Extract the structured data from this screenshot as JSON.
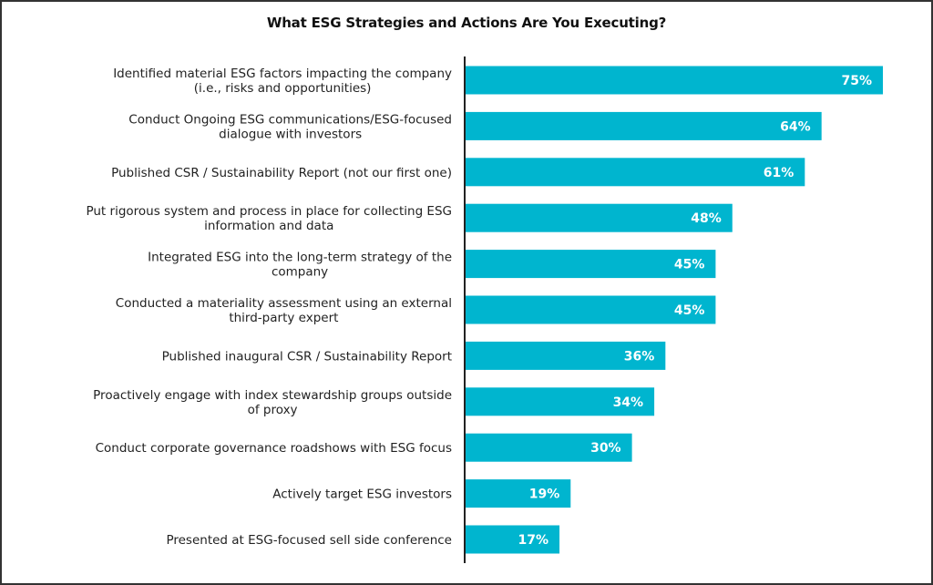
{
  "chart_data": {
    "type": "bar",
    "orientation": "horizontal",
    "title": "What ESG Strategies and Actions Are You Executing?",
    "xlabel": "",
    "ylabel": "",
    "xlim": [
      0,
      100
    ],
    "grid": false,
    "legend": "none",
    "bar_color": "#00B5CF",
    "label_color": "#ffffff",
    "categories": [
      [
        "Identified material ESG factors impacting the company",
        "(i.e., risks and opportunities)"
      ],
      [
        "Conduct Ongoing ESG communications/ESG-focused",
        "dialogue with investors"
      ],
      [
        "Published CSR / Sustainability Report (not our first one)"
      ],
      [
        "Put rigorous system and process in place for collecting ESG",
        "information and data"
      ],
      [
        "Integrated ESG into the long-term strategy of the",
        "company"
      ],
      [
        "Conducted a materiality assessment using an external",
        "third-party expert"
      ],
      [
        "Published inaugural CSR / Sustainability Report"
      ],
      [
        "Proactively engage with index stewardship groups outside",
        "of proxy"
      ],
      [
        "Conduct corporate governance roadshows with ESG focus"
      ],
      [
        "Actively target ESG investors"
      ],
      [
        "Presented at ESG-focused sell side conference"
      ]
    ],
    "values": [
      75,
      64,
      61,
      48,
      45,
      45,
      36,
      34,
      30,
      19,
      17
    ],
    "value_labels": [
      "75%",
      "64%",
      "61%",
      "48%",
      "45%",
      "45%",
      "36%",
      "34%",
      "30%",
      "19%",
      "17%"
    ]
  }
}
